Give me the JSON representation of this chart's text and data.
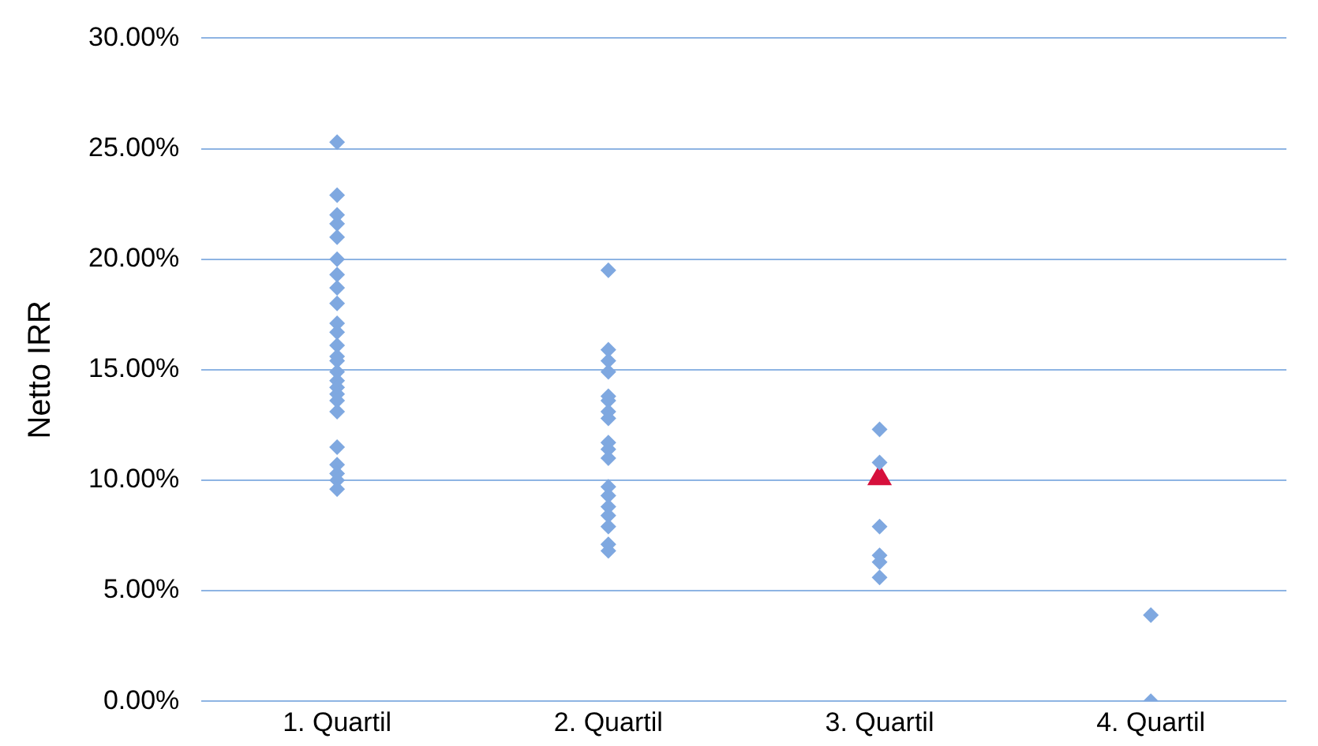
{
  "chart_data": {
    "type": "scatter",
    "ylabel": "Netto IRR",
    "categories": [
      "1. Quartil",
      "2. Quartil",
      "3. Quartil",
      "4. Quartil"
    ],
    "ylim": [
      0,
      30
    ],
    "yticks": [
      {
        "value": 0,
        "label": "0.00%"
      },
      {
        "value": 5,
        "label": "5.00%"
      },
      {
        "value": 10,
        "label": "10.00%"
      },
      {
        "value": 15,
        "label": "15.00%"
      },
      {
        "value": 20,
        "label": "20.00%"
      },
      {
        "value": 25,
        "label": "25.00%"
      },
      {
        "value": 30,
        "label": "30.00%"
      }
    ],
    "grid": "y",
    "legend": false,
    "series": [
      {
        "color": "#7fa8e0",
        "marker": "diamond",
        "x": [
          "1. Quartil",
          "1. Quartil",
          "1. Quartil",
          "1. Quartil",
          "1. Quartil",
          "1. Quartil",
          "1. Quartil",
          "1. Quartil",
          "1. Quartil",
          "1. Quartil",
          "1. Quartil",
          "1. Quartil",
          "1. Quartil",
          "1. Quartil",
          "1. Quartil",
          "1. Quartil",
          "1. Quartil",
          "1. Quartil",
          "1. Quartil",
          "1. Quartil",
          "1. Quartil",
          "1. Quartil",
          "1. Quartil",
          "1. Quartil",
          "1. Quartil",
          "2. Quartil",
          "2. Quartil",
          "2. Quartil",
          "2. Quartil",
          "2. Quartil",
          "2. Quartil",
          "2. Quartil",
          "2. Quartil",
          "2. Quartil",
          "2. Quartil",
          "2. Quartil",
          "2. Quartil",
          "2. Quartil",
          "2. Quartil",
          "2. Quartil",
          "2. Quartil",
          "2. Quartil",
          "2. Quartil",
          "3. Quartil",
          "3. Quartil",
          "3. Quartil",
          "3. Quartil",
          "3. Quartil",
          "3. Quartil",
          "4. Quartil",
          "4. Quartil"
        ],
        "values": [
          25.3,
          22.9,
          22.0,
          21.6,
          21.0,
          20.0,
          19.3,
          18.7,
          18.0,
          17.1,
          16.7,
          16.1,
          15.6,
          15.4,
          14.9,
          14.5,
          14.2,
          13.9,
          13.6,
          13.1,
          11.5,
          10.7,
          10.3,
          10.0,
          9.6,
          19.5,
          15.9,
          15.4,
          14.9,
          13.8,
          13.6,
          13.1,
          12.8,
          11.7,
          11.4,
          11.0,
          9.7,
          9.3,
          8.8,
          8.4,
          7.9,
          7.1,
          6.8,
          12.3,
          10.8,
          7.9,
          6.6,
          6.3,
          5.6,
          3.9,
          0
        ]
      },
      {
        "color": "#d6103c",
        "marker": "triangle",
        "x": [
          "3. Quartil"
        ],
        "values": [
          10.1
        ]
      }
    ]
  }
}
